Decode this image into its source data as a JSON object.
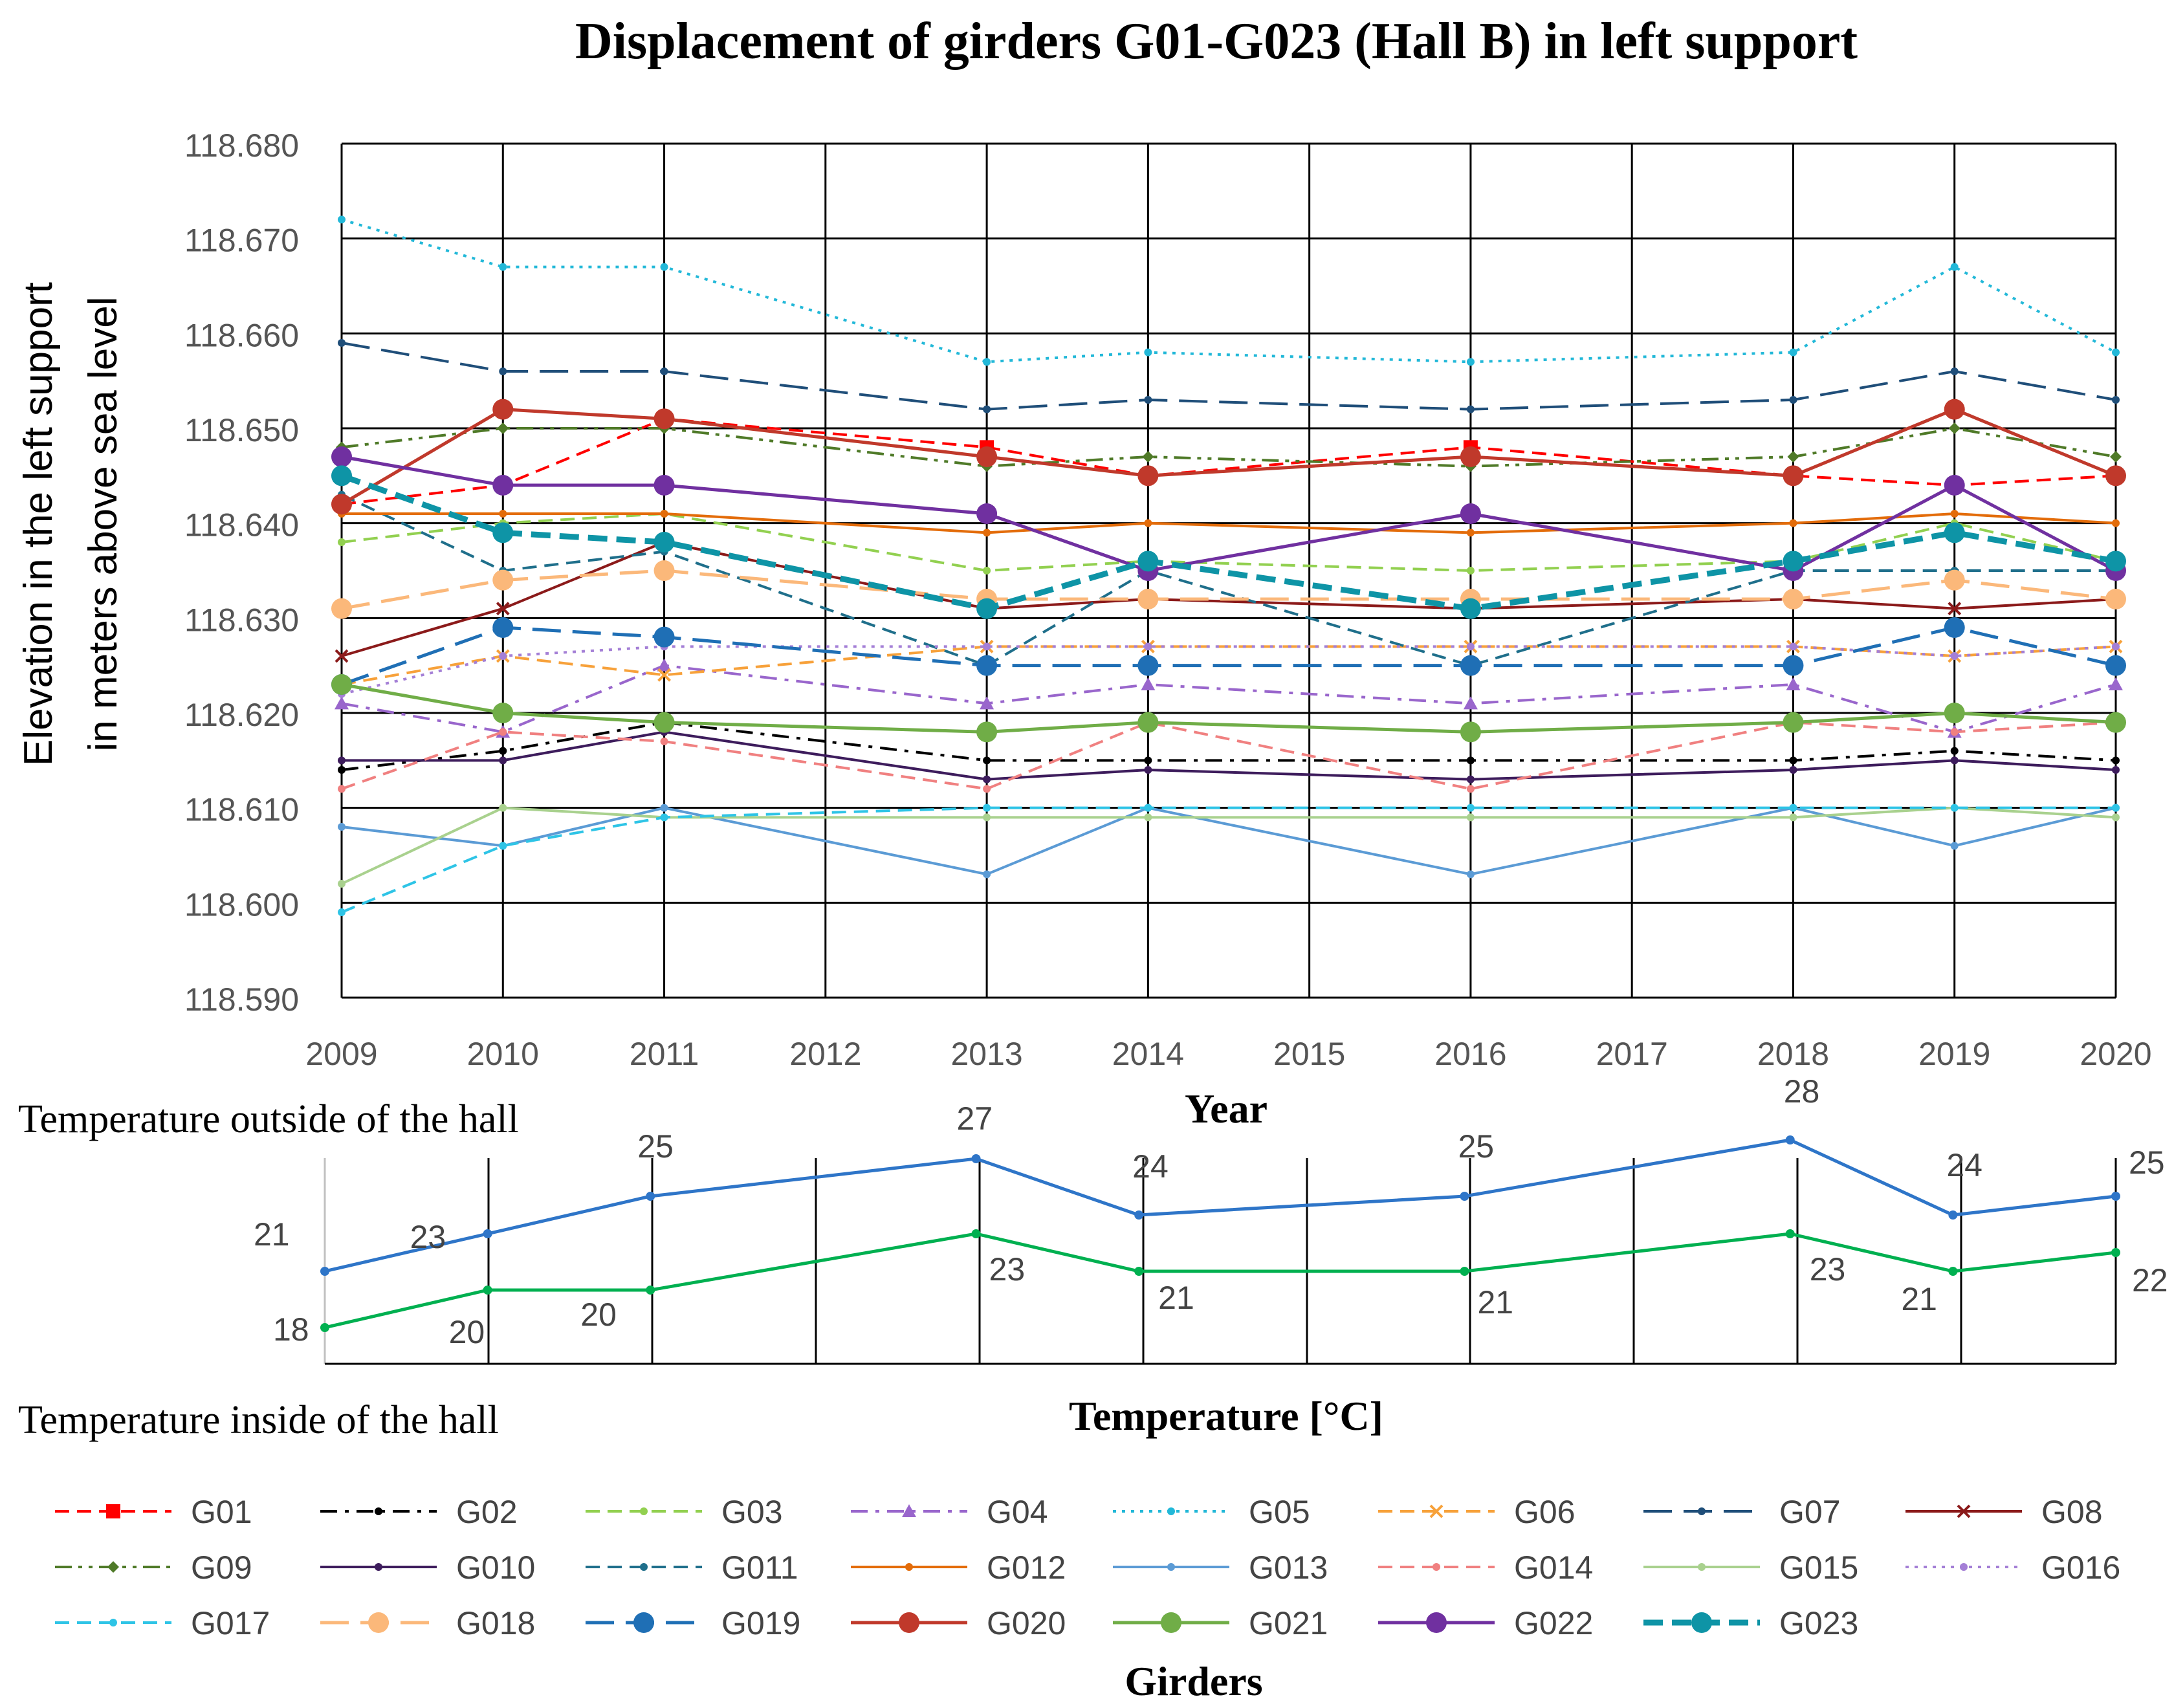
{
  "chart_data": [
    {
      "type": "line",
      "title": "Displacement of girders G01-G023 (Hall B) in left support",
      "xlabel": "Year",
      "ylabel": [
        "Elevation in the left support",
        "in meters above sea level"
      ],
      "x": [
        2009,
        2010,
        2011,
        2012,
        2013,
        2014,
        2015,
        2016,
        2017,
        2018,
        2019,
        2020
      ],
      "ylim": [
        118.59,
        118.68
      ],
      "yticks": [
        "118.680",
        "118.670",
        "118.660",
        "118.650",
        "118.640",
        "118.630",
        "118.620",
        "118.610",
        "118.600",
        "118.590"
      ],
      "grid": true,
      "legend_title": "Girders",
      "legend_position": "bottom",
      "series": [
        {
          "name": "G01",
          "color": "#ff0000",
          "dash": "dash",
          "marker": "square",
          "x": [
            2009,
            2010,
            2011,
            2013,
            2014,
            2016,
            2018,
            2019,
            2020
          ],
          "values": [
            118.642,
            118.644,
            118.651,
            118.648,
            118.645,
            118.648,
            118.645,
            118.644,
            118.645
          ]
        },
        {
          "name": "G02",
          "color": "#000000",
          "dash": "dashdot",
          "marker": "dot",
          "x": [
            2009,
            2010,
            2011,
            2013,
            2014,
            2016,
            2018,
            2019,
            2020
          ],
          "values": [
            118.614,
            118.616,
            118.619,
            118.615,
            118.615,
            118.615,
            118.615,
            118.616,
            118.615
          ]
        },
        {
          "name": "G03",
          "color": "#92d050",
          "dash": "dash",
          "marker": "dot",
          "x": [
            2009,
            2010,
            2011,
            2013,
            2014,
            2016,
            2018,
            2019,
            2020
          ],
          "values": [
            118.638,
            118.64,
            118.641,
            118.635,
            118.636,
            118.635,
            118.636,
            118.64,
            118.636
          ]
        },
        {
          "name": "G04",
          "color": "#9966cc",
          "dash": "dashdot",
          "marker": "triangle",
          "x": [
            2009,
            2010,
            2011,
            2013,
            2014,
            2016,
            2018,
            2019,
            2020
          ],
          "values": [
            118.621,
            118.618,
            118.625,
            118.621,
            118.623,
            118.621,
            118.623,
            118.618,
            118.623
          ]
        },
        {
          "name": "G05",
          "color": "#22b8d8",
          "dash": "dot",
          "marker": "dot",
          "x": [
            2009,
            2010,
            2011,
            2013,
            2014,
            2016,
            2018,
            2019,
            2020
          ],
          "values": [
            118.672,
            118.667,
            118.667,
            118.657,
            118.658,
            118.657,
            118.658,
            118.667,
            118.658
          ]
        },
        {
          "name": "G06",
          "color": "#f7a13a",
          "dash": "dash",
          "marker": "x",
          "x": [
            2009,
            2010,
            2011,
            2013,
            2014,
            2016,
            2018,
            2019,
            2020
          ],
          "values": [
            118.623,
            118.626,
            118.624,
            118.627,
            118.627,
            118.627,
            118.627,
            118.626,
            118.627
          ]
        },
        {
          "name": "G07",
          "color": "#1f4e79",
          "dash": "longdash",
          "marker": "dot",
          "x": [
            2009,
            2010,
            2011,
            2013,
            2014,
            2016,
            2018,
            2019,
            2020
          ],
          "values": [
            118.659,
            118.656,
            118.656,
            118.652,
            118.653,
            118.652,
            118.653,
            118.656,
            118.653
          ]
        },
        {
          "name": "G08",
          "color": "#8b1a1a",
          "dash": "solid",
          "marker": "x",
          "x": [
            2009,
            2010,
            2011,
            2013,
            2014,
            2016,
            2018,
            2019,
            2020
          ],
          "values": [
            118.626,
            118.631,
            118.638,
            118.631,
            118.632,
            118.631,
            118.632,
            118.631,
            118.632
          ]
        },
        {
          "name": "G09",
          "color": "#4f7a28",
          "dash": "dashdotdot",
          "marker": "diamond",
          "x": [
            2009,
            2010,
            2011,
            2013,
            2014,
            2016,
            2018,
            2019,
            2020
          ],
          "values": [
            118.648,
            118.65,
            118.65,
            118.646,
            118.647,
            118.646,
            118.647,
            118.65,
            118.647
          ]
        },
        {
          "name": "G010",
          "color": "#3d1c5c",
          "dash": "solid",
          "marker": "dot",
          "x": [
            2009,
            2010,
            2011,
            2013,
            2014,
            2016,
            2018,
            2019,
            2020
          ],
          "values": [
            118.615,
            118.615,
            118.618,
            118.613,
            118.614,
            118.613,
            118.614,
            118.615,
            118.614
          ]
        },
        {
          "name": "G011",
          "color": "#1f6f8b",
          "dash": "dash",
          "marker": "dot",
          "x": [
            2009,
            2010,
            2011,
            2013,
            2014,
            2016,
            2018,
            2019,
            2020
          ],
          "values": [
            118.643,
            118.635,
            118.637,
            118.625,
            118.635,
            118.625,
            118.635,
            118.635,
            118.635
          ]
        },
        {
          "name": "G012",
          "color": "#e36c0a",
          "dash": "solid",
          "marker": "dot",
          "x": [
            2009,
            2010,
            2011,
            2013,
            2014,
            2016,
            2018,
            2019,
            2020
          ],
          "values": [
            118.641,
            118.641,
            118.641,
            118.639,
            118.64,
            118.639,
            118.64,
            118.641,
            118.64
          ]
        },
        {
          "name": "G013",
          "color": "#5b9bd5",
          "dash": "solid",
          "marker": "dot",
          "x": [
            2009,
            2010,
            2011,
            2013,
            2014,
            2016,
            2018,
            2019,
            2020
          ],
          "values": [
            118.608,
            118.606,
            118.61,
            118.603,
            118.61,
            118.603,
            118.61,
            118.606,
            118.61
          ]
        },
        {
          "name": "G014",
          "color": "#f08080",
          "dash": "dash",
          "marker": "dot",
          "x": [
            2009,
            2010,
            2011,
            2013,
            2014,
            2016,
            2018,
            2019,
            2020
          ],
          "values": [
            118.612,
            118.618,
            118.617,
            118.612,
            118.619,
            118.612,
            118.619,
            118.618,
            118.619
          ]
        },
        {
          "name": "G015",
          "color": "#a9d18e",
          "dash": "solid",
          "marker": "dot",
          "x": [
            2009,
            2010,
            2011,
            2013,
            2014,
            2016,
            2018,
            2019,
            2020
          ],
          "values": [
            118.602,
            118.61,
            118.609,
            118.609,
            118.609,
            118.609,
            118.609,
            118.61,
            118.609
          ]
        },
        {
          "name": "G016",
          "color": "#a47fd6",
          "dash": "dot",
          "marker": "dot",
          "x": [
            2009,
            2010,
            2011,
            2013,
            2014,
            2016,
            2018,
            2019,
            2020
          ],
          "values": [
            118.622,
            118.626,
            118.627,
            118.627,
            118.627,
            118.627,
            118.627,
            118.626,
            118.627
          ]
        },
        {
          "name": "G017",
          "color": "#2ec4e6",
          "dash": "dash",
          "marker": "dot",
          "x": [
            2009,
            2010,
            2011,
            2013,
            2014,
            2016,
            2018,
            2019,
            2020
          ],
          "values": [
            118.599,
            118.606,
            118.609,
            118.61,
            118.61,
            118.61,
            118.61,
            118.61,
            118.61
          ]
        },
        {
          "name": "G018",
          "color": "#fbb87a",
          "dash": "longdash",
          "marker": "bigdot",
          "x": [
            2009,
            2010,
            2011,
            2013,
            2014,
            2016,
            2018,
            2019,
            2020
          ],
          "values": [
            118.631,
            118.634,
            118.635,
            118.632,
            118.632,
            118.632,
            118.632,
            118.634,
            118.632
          ]
        },
        {
          "name": "G019",
          "color": "#1f6fb5",
          "dash": "longdash",
          "marker": "bigdot",
          "x": [
            2009,
            2010,
            2011,
            2013,
            2014,
            2016,
            2018,
            2019,
            2020
          ],
          "values": [
            118.623,
            118.629,
            118.628,
            118.625,
            118.625,
            118.625,
            118.625,
            118.629,
            118.625
          ]
        },
        {
          "name": "G020",
          "color": "#c0392b",
          "dash": "solid",
          "marker": "bigdot",
          "x": [
            2009,
            2010,
            2011,
            2013,
            2014,
            2016,
            2018,
            2019,
            2020
          ],
          "values": [
            118.642,
            118.652,
            118.651,
            118.647,
            118.645,
            118.647,
            118.645,
            118.652,
            118.645
          ]
        },
        {
          "name": "G021",
          "color": "#70ad47",
          "dash": "solid",
          "marker": "bigdot",
          "x": [
            2009,
            2010,
            2011,
            2013,
            2014,
            2016,
            2018,
            2019,
            2020
          ],
          "values": [
            118.623,
            118.62,
            118.619,
            118.618,
            118.619,
            118.618,
            118.619,
            118.62,
            118.619
          ]
        },
        {
          "name": "G022",
          "color": "#7030a0",
          "dash": "solid",
          "marker": "bigdot",
          "x": [
            2009,
            2010,
            2011,
            2013,
            2014,
            2016,
            2018,
            2019,
            2020
          ],
          "values": [
            118.647,
            118.644,
            118.644,
            118.641,
            118.635,
            118.641,
            118.635,
            118.644,
            118.635
          ]
        },
        {
          "name": "G023",
          "color": "#0e94a6",
          "dash": "boldash",
          "marker": "bigdot",
          "x": [
            2009,
            2010,
            2011,
            2013,
            2014,
            2016,
            2018,
            2019,
            2020
          ],
          "values": [
            118.645,
            118.639,
            118.638,
            118.631,
            118.636,
            118.631,
            118.636,
            118.639,
            118.636
          ]
        }
      ]
    },
    {
      "type": "line",
      "xlabel": "Temperature [°C]",
      "x": [
        2009,
        2010,
        2011,
        2013,
        2014,
        2016,
        2018,
        2019,
        2020
      ],
      "grid": true,
      "series": [
        {
          "name": "Temperature outside of the hall",
          "color": "#2e75c8",
          "values": [
            21,
            23,
            25,
            27,
            24,
            25,
            28,
            24,
            25
          ]
        },
        {
          "name": "Temperature inside of the hall",
          "color": "#00b050",
          "values": [
            18,
            20,
            20,
            23,
            21,
            21,
            23,
            21,
            22
          ]
        }
      ]
    }
  ]
}
